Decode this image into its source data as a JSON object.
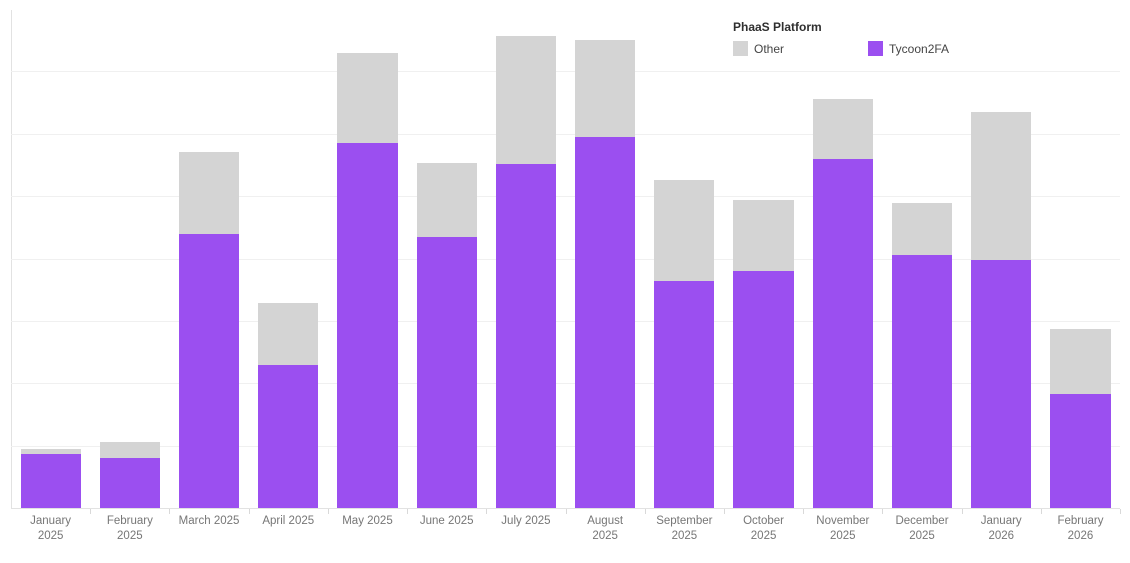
{
  "legend": {
    "title": "PhaaS Platform",
    "items": [
      {
        "label": "Other",
        "color": "#d4d4d4"
      },
      {
        "label": "Tycoon2FA",
        "color": "#9b4ff0"
      }
    ]
  },
  "chart_data": {
    "type": "bar",
    "stacked": true,
    "orientation": "vertical",
    "title": "",
    "xlabel": "",
    "ylabel": "",
    "ylim": [
      0,
      8
    ],
    "y_gridline_step": 1,
    "y_tick_labels_shown": false,
    "grid": "horizontal",
    "legend_position": "top-right",
    "categories": [
      "January 2025",
      "February 2025",
      "March 2025",
      "April 2025",
      "May 2025",
      "June 2025",
      "July 2025",
      "August 2025",
      "September 2025",
      "October 2025",
      "November 2025",
      "December 2025",
      "January 2026",
      "February 2026"
    ],
    "category_label_lines": [
      [
        "January",
        "2025"
      ],
      [
        "February",
        "2025"
      ],
      [
        "March 2025"
      ],
      [
        "April 2025"
      ],
      [
        "May 2025"
      ],
      [
        "June 2025"
      ],
      [
        "July 2025"
      ],
      [
        "August",
        "2025"
      ],
      [
        "September",
        "2025"
      ],
      [
        "October",
        "2025"
      ],
      [
        "November",
        "2025"
      ],
      [
        "December",
        "2025"
      ],
      [
        "January",
        "2026"
      ],
      [
        "February",
        "2026"
      ]
    ],
    "series": [
      {
        "name": "Tycoon2FA",
        "color": "#9b4ff0",
        "values": [
          0.89,
          0.81,
          4.41,
          2.31,
          5.86,
          4.36,
          5.53,
          5.97,
          3.66,
          3.81,
          5.61,
          4.08,
          4.0,
          1.85
        ]
      },
      {
        "name": "Other",
        "color": "#d4d4d4",
        "values": [
          0.07,
          0.27,
          1.31,
          1.0,
          1.45,
          1.19,
          2.05,
          1.55,
          1.61,
          1.14,
          0.96,
          0.83,
          2.37,
          1.03
        ]
      }
    ],
    "y_axis_note": "no numeric y-axis labels visible; values expressed in gridline units"
  },
  "styles": {
    "grid_color": "#f0f0f0",
    "axis_color": "#e2e2e2",
    "tick_color": "#d9d9d9",
    "label_color": "#767676",
    "legend_title_color": "#2f2f2f",
    "legend_label_color": "#444444"
  }
}
